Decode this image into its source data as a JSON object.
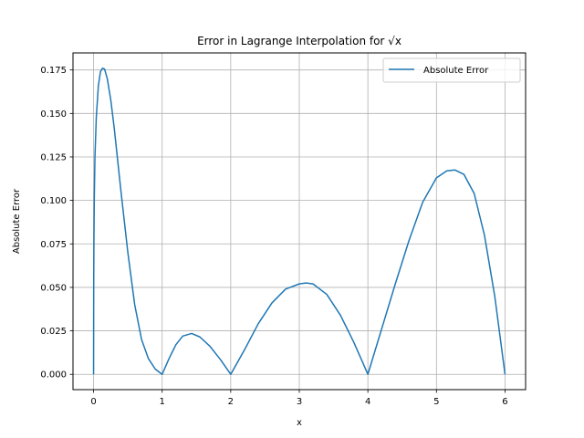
{
  "chart_data": {
    "type": "line",
    "title": "Error in Lagrange Interpolation for √x",
    "xlabel": "x",
    "ylabel": "Absolute Error",
    "xlim": [
      -0.3,
      6.3
    ],
    "ylim": [
      -0.0088,
      0.1848
    ],
    "xticks": [
      0,
      1,
      2,
      3,
      4,
      5,
      6
    ],
    "xtick_labels": [
      "0",
      "1",
      "2",
      "3",
      "4",
      "5",
      "6"
    ],
    "yticks": [
      0.0,
      0.025,
      0.05,
      0.075,
      0.1,
      0.125,
      0.15,
      0.175
    ],
    "ytick_labels": [
      "0.000",
      "0.025",
      "0.050",
      "0.075",
      "0.100",
      "0.125",
      "0.150",
      "0.175"
    ],
    "grid": true,
    "legend_position": "top-right",
    "series": [
      {
        "name": "Absolute Error",
        "color": "#1f77b4",
        "x": [
          0,
          0.002,
          0.005,
          0.01,
          0.02,
          0.04,
          0.07,
          0.1,
          0.13,
          0.16,
          0.2,
          0.25,
          0.3,
          0.4,
          0.5,
          0.6,
          0.7,
          0.8,
          0.9,
          1.0,
          1.1,
          1.2,
          1.3,
          1.43,
          1.55,
          1.7,
          1.85,
          2.0,
          2.2,
          2.4,
          2.6,
          2.8,
          3.0,
          3.1,
          3.2,
          3.4,
          3.6,
          3.8,
          4.0,
          4.2,
          4.4,
          4.6,
          4.8,
          5.0,
          5.15,
          5.27,
          5.4,
          5.55,
          5.7,
          5.85,
          6.0
        ],
        "y": [
          0.0,
          0.05,
          0.075,
          0.1,
          0.125,
          0.148,
          0.166,
          0.174,
          0.176,
          0.1755,
          0.17,
          0.158,
          0.142,
          0.105,
          0.07,
          0.04,
          0.02,
          0.009,
          0.003,
          0.0,
          0.009,
          0.017,
          0.022,
          0.0235,
          0.0215,
          0.016,
          0.0085,
          0.0,
          0.014,
          0.029,
          0.041,
          0.049,
          0.052,
          0.0525,
          0.052,
          0.046,
          0.034,
          0.018,
          0.0,
          0.026,
          0.052,
          0.077,
          0.099,
          0.113,
          0.117,
          0.1175,
          0.115,
          0.104,
          0.08,
          0.045,
          0.0
        ]
      }
    ]
  }
}
